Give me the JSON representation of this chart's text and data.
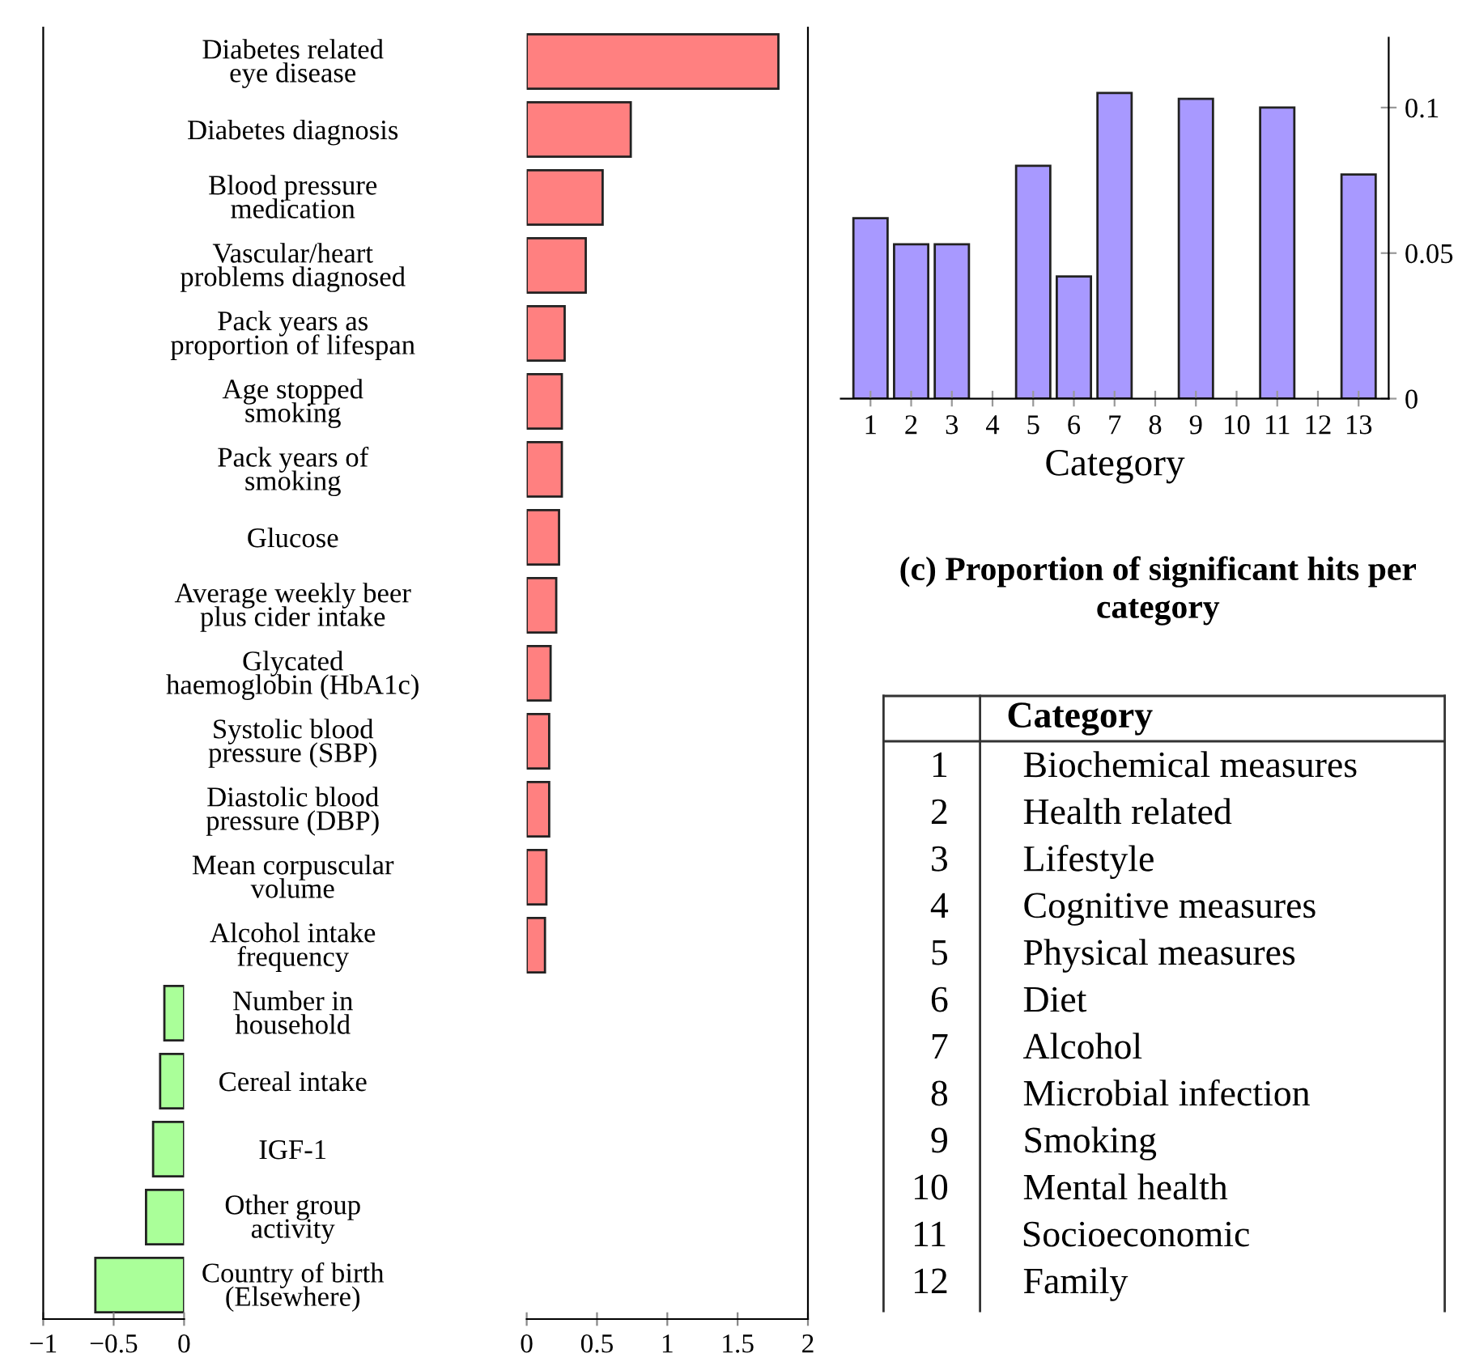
{
  "chart_data": [
    {
      "type": "bar",
      "orientation": "horizontal",
      "tick_labels": "x",
      "color": "#aaff99",
      "categories": [
        null,
        null,
        null,
        null,
        null,
        null,
        null,
        null,
        null,
        null,
        null,
        null,
        null,
        null,
        null,
        null,
        null,
        null,
        null
      ],
      "values": [
        null,
        null,
        null,
        null,
        null,
        null,
        null,
        null,
        null,
        null,
        null,
        null,
        null,
        null,
        -0.14,
        -0.17,
        -0.22,
        -0.27,
        -0.63
      ],
      "xlim": [
        -1,
        0
      ],
      "xticks": [
        {
          "value": -1,
          "label": "−1"
        },
        {
          "value": -0.5,
          "label": "−0.5"
        },
        0
      ]
    },
    {
      "type": "bar",
      "orientation": "horizontal",
      "color": "#ff8080",
      "categories": [
        "Diabetes related\neye disease",
        "Diabetes diagnosis",
        "Blood pressure\nmedication",
        "Vascular/heart\nproblems diagnosed",
        "Pack years as\nproportion of lifespan",
        "Age stopped\nsmoking",
        "Pack years of\nsmoking",
        "Glucose",
        "Average weekly beer\nplus cider intake",
        "Glycated\nhaemoglobin (HbA1c)",
        "Systolic blood\npressure (SBP)",
        "Diastolic blood\npressure (DBP)",
        "Mean corpuscular\nvolume",
        "Alcohol intake\nfrequency",
        "Number in\nhousehold",
        "Cereal intake",
        "IGF-1",
        "Other group\nactivity",
        "Country of birth\n(Elsewhere)"
      ],
      "values": [
        1.79,
        0.74,
        0.54,
        0.42,
        0.27,
        0.25,
        0.25,
        0.23,
        0.21,
        0.17,
        0.16,
        0.16,
        0.14,
        0.13,
        null,
        null,
        null,
        null,
        null
      ],
      "xlim": [
        0,
        2
      ],
      "xticks": [
        0,
        0.5,
        1,
        1.5,
        2
      ]
    },
    {
      "type": "bar",
      "color": "#a899ff",
      "title": "(c) Proportion of significant hits per category",
      "xlabel": "Category",
      "categories": [
        "1",
        "2",
        "3",
        "4",
        "5",
        "6",
        "7",
        "8",
        "9",
        "10",
        "11",
        "12",
        "13"
      ],
      "values": [
        0.062,
        0.053,
        0.053,
        0,
        0.08,
        0.042,
        0.105,
        0,
        0.103,
        0,
        0.1,
        0,
        0.077
      ],
      "ylim": [
        0,
        0.124
      ],
      "yticks": [
        0,
        0.05,
        0.1
      ]
    },
    {
      "type": "other",
      "title": "Category",
      "annotations": [
        "1 Biochemical measures",
        "2 Health related",
        "3 Lifestyle",
        "4 Cognitive measures",
        "5 Physical measures",
        "6 Diet",
        "7 Alcohol",
        "8 Microbial infection",
        "9 Smoking",
        "10 Mental health",
        "11 Socioeconomic",
        "12 Family"
      ]
    }
  ]
}
